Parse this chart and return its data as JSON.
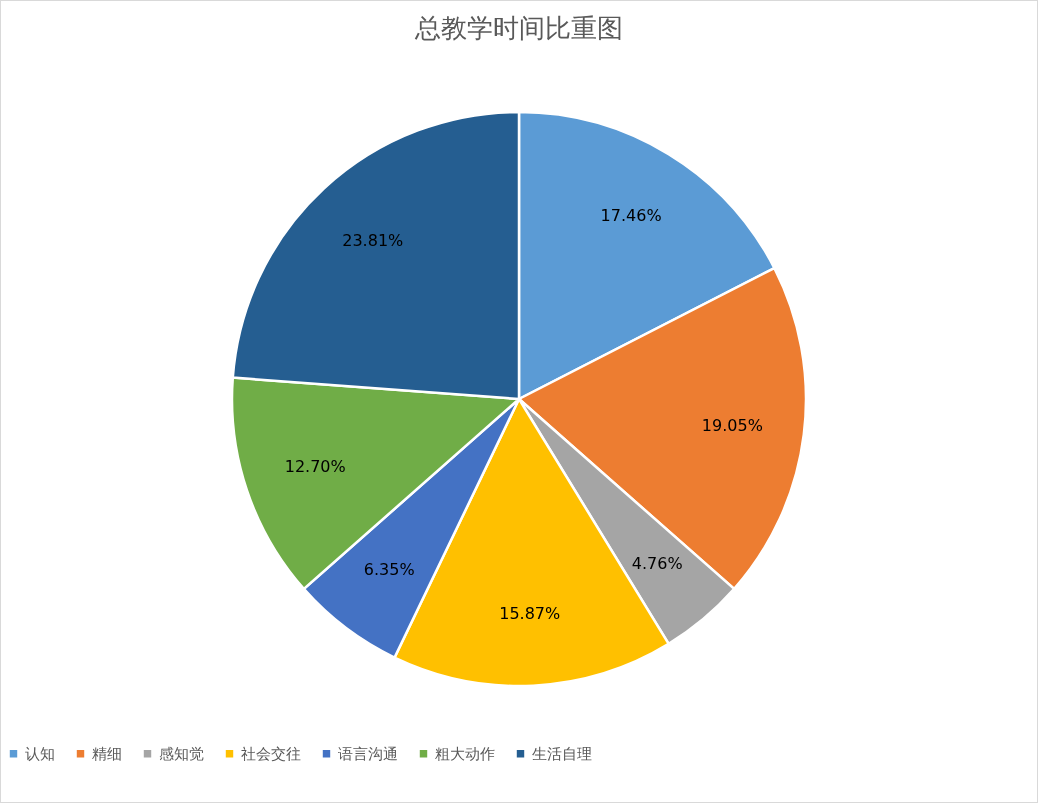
{
  "chart_data": {
    "type": "pie",
    "title": "总教学时间比重图",
    "categories": [
      "认知",
      "精细",
      "感知觉",
      "社会交往",
      "语言沟通",
      "粗大动作",
      "生活自理"
    ],
    "values": [
      17.46,
      19.05,
      4.76,
      15.87,
      6.35,
      12.7,
      23.81
    ],
    "value_labels": [
      "17.46%",
      "19.05%",
      "4.76%",
      "15.87%",
      "6.35%",
      "12.70%",
      "23.81%"
    ],
    "colors": [
      "#5b9bd5",
      "#ed7d31",
      "#a5a5a5",
      "#ffc000",
      "#4472c4",
      "#70ad47",
      "#255e91"
    ],
    "legend": "bottom"
  }
}
